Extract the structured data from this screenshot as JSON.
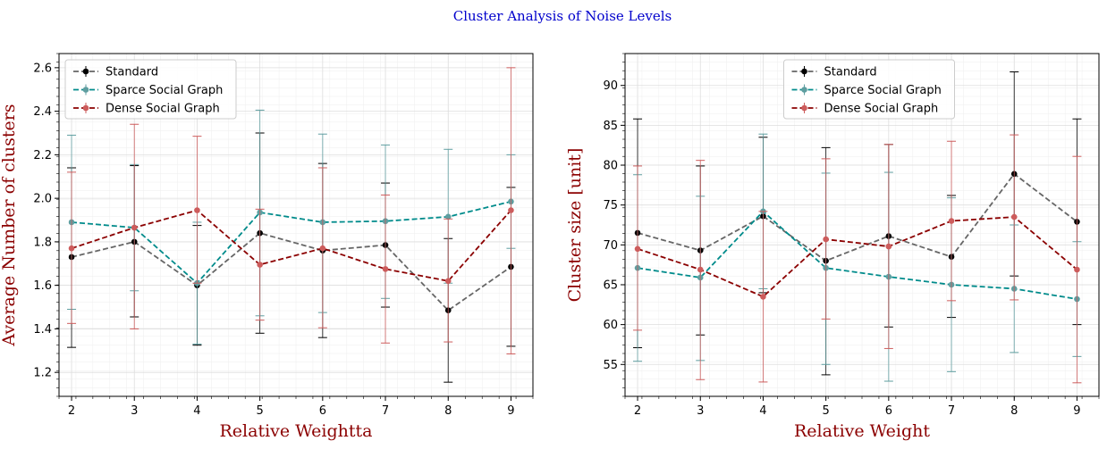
{
  "figure": {
    "title": "Cluster Analysis of Noise Levels",
    "title_color": "#0000cc",
    "label_color": "#8b0000"
  },
  "chart_data": [
    {
      "type": "line",
      "xlabel": "Relative Weightta",
      "ylabel": "Average Number of clusters",
      "xlim": [
        1.8,
        9.35
      ],
      "ylim": [
        1.09,
        2.665
      ],
      "xticks": [
        2,
        3,
        4,
        5,
        6,
        7,
        8,
        9
      ],
      "yticks": [
        1.2,
        1.4,
        1.6,
        1.8,
        2.0,
        2.2,
        2.4,
        2.6
      ],
      "ytick_labels": [
        "1.2",
        "1.4",
        "1.6",
        "1.8",
        "2.0",
        "2.2",
        "2.4",
        "2.6"
      ],
      "grid": true,
      "legend_position": "top-left",
      "x": [
        2,
        3,
        4,
        5,
        6,
        7,
        8,
        9
      ],
      "series": [
        {
          "name": "Standard",
          "color": "#666666",
          "marker_color": "#000000",
          "err_color": "#000000",
          "values": [
            1.73,
            1.8,
            1.6,
            1.84,
            1.76,
            1.785,
            1.485,
            1.685
          ],
          "err_low": [
            1.315,
            1.455,
            1.325,
            1.38,
            1.36,
            1.5,
            1.155,
            1.32
          ],
          "err_high": [
            2.14,
            2.15,
            1.875,
            2.3,
            2.16,
            2.07,
            1.815,
            2.05
          ]
        },
        {
          "name": "Sparce Social Graph",
          "color": "#008b8b",
          "marker_color": "#5f9ea0",
          "err_color": "#5f9ea0",
          "values": [
            1.89,
            1.865,
            1.61,
            1.935,
            1.89,
            1.895,
            1.915,
            1.985
          ],
          "err_low": [
            1.49,
            1.575,
            1.33,
            1.46,
            1.475,
            1.54,
            1.61,
            1.77
          ],
          "err_high": [
            2.29,
            2.155,
            1.89,
            2.405,
            2.295,
            2.245,
            2.225,
            2.2
          ]
        },
        {
          "name": "Dense Social Graph",
          "color": "#8b0000",
          "marker_color": "#cd5c5c",
          "err_color": "#cd5c5c",
          "values": [
            1.77,
            1.865,
            1.945,
            1.695,
            1.77,
            1.675,
            1.62,
            1.945
          ],
          "err_low": [
            1.425,
            1.4,
            1.61,
            1.44,
            1.405,
            1.335,
            1.34,
            1.285
          ],
          "err_high": [
            2.12,
            2.34,
            2.285,
            1.95,
            2.14,
            2.015,
            1.905,
            2.6
          ]
        }
      ]
    },
    {
      "type": "line",
      "xlabel": "Relative Weight",
      "ylabel": "Cluster size [unit]",
      "xlim": [
        1.8,
        9.35
      ],
      "ylim": [
        51.0,
        94.0
      ],
      "xticks": [
        2,
        3,
        4,
        5,
        6,
        7,
        8,
        9
      ],
      "yticks": [
        55,
        60,
        65,
        70,
        75,
        80,
        85,
        90
      ],
      "ytick_labels": [
        "55",
        "60",
        "65",
        "70",
        "75",
        "80",
        "85",
        "90"
      ],
      "grid": true,
      "legend_position": "top-center",
      "x": [
        2,
        3,
        4,
        5,
        6,
        7,
        8,
        9
      ],
      "series": [
        {
          "name": "Standard",
          "color": "#666666",
          "marker_color": "#000000",
          "err_color": "#000000",
          "values": [
            71.5,
            69.3,
            73.6,
            68.0,
            71.1,
            68.5,
            78.9,
            72.9
          ],
          "err_low": [
            57.1,
            58.7,
            64.0,
            53.7,
            59.7,
            60.9,
            66.1,
            60.0
          ],
          "err_high": [
            85.8,
            79.9,
            83.5,
            82.2,
            82.6,
            76.2,
            91.7,
            85.8
          ]
        },
        {
          "name": "Sparce Social Graph",
          "color": "#008b8b",
          "marker_color": "#5f9ea0",
          "err_color": "#5f9ea0",
          "values": [
            67.1,
            65.9,
            74.2,
            67.1,
            66.0,
            65.0,
            64.5,
            63.2
          ],
          "err_low": [
            55.4,
            55.5,
            64.5,
            55.0,
            52.9,
            54.1,
            56.5,
            56.0
          ],
          "err_high": [
            78.8,
            76.1,
            83.9,
            79.0,
            79.1,
            75.9,
            72.5,
            70.4
          ]
        },
        {
          "name": "Dense Social Graph",
          "color": "#8b0000",
          "marker_color": "#cd5c5c",
          "err_color": "#cd5c5c",
          "values": [
            69.5,
            66.9,
            63.5,
            70.7,
            69.8,
            73.0,
            73.5,
            66.9
          ],
          "err_low": [
            59.3,
            53.1,
            52.8,
            60.7,
            57.0,
            63.0,
            63.1,
            52.7
          ],
          "err_high": [
            79.9,
            80.6,
            74.2,
            80.8,
            82.6,
            83.0,
            83.8,
            81.1
          ]
        }
      ]
    }
  ]
}
